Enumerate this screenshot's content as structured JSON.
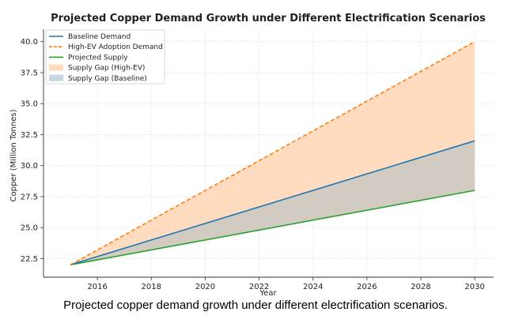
{
  "chart_data": {
    "type": "line",
    "title": "Projected Copper Demand Growth under Different Electrification Scenarios",
    "xlabel": "Year",
    "ylabel": "Copper (Million Tonnes)",
    "xlim": [
      2014.0,
      2030.7
    ],
    "ylim": [
      21.0,
      41.0
    ],
    "xticks": [
      2016,
      2018,
      2020,
      2022,
      2024,
      2026,
      2028,
      2030
    ],
    "yticks": [
      22.5,
      25.0,
      27.5,
      30.0,
      32.5,
      35.0,
      37.5,
      40.0
    ],
    "grid": true,
    "legend_position": "top-left",
    "x": [
      2015,
      2030
    ],
    "series": [
      {
        "name": "Baseline Demand",
        "values": [
          22,
          32
        ],
        "color": "#1f77b4",
        "style": "solid"
      },
      {
        "name": "High-EV Adoption Demand",
        "values": [
          22,
          40
        ],
        "color": "#ff7f0e",
        "style": "dashed"
      },
      {
        "name": "Projected Supply",
        "values": [
          22,
          28
        ],
        "color": "#2ca02c",
        "style": "solid"
      }
    ],
    "fills": [
      {
        "name": "Supply Gap (High-EV)",
        "between": [
          "Projected Supply",
          "High-EV Adoption Demand"
        ],
        "color": "#ffdcc0"
      },
      {
        "name": "Supply Gap (Baseline)",
        "between": [
          "Projected Supply",
          "Baseline Demand"
        ],
        "color": "#c8d6e6"
      }
    ],
    "overlap_color": "#d2cbc2"
  },
  "caption": "Projected copper demand growth under different electrification scenarios."
}
